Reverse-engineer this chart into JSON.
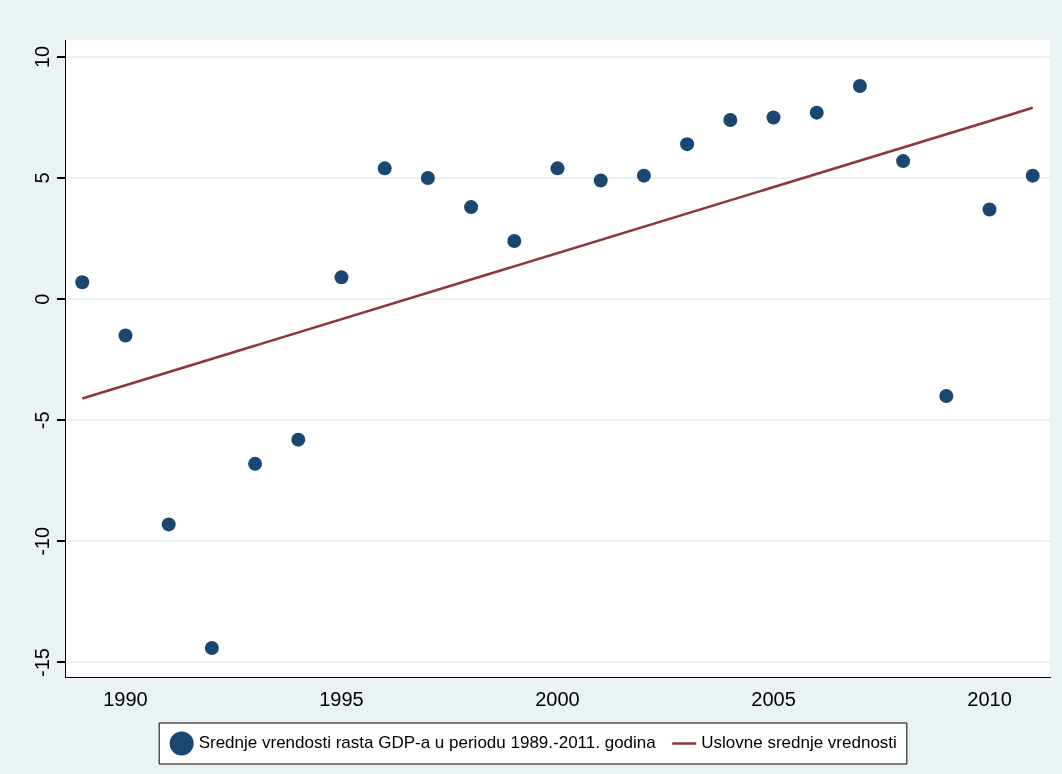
{
  "chart_data": {
    "type": "scatter",
    "x": [
      1989,
      1990,
      1991,
      1992,
      1993,
      1994,
      1995,
      1996,
      1997,
      1998,
      1999,
      2000,
      2001,
      2002,
      2003,
      2004,
      2005,
      2006,
      2007,
      2008,
      2009,
      2010,
      2011
    ],
    "series": [
      {
        "name": "Srednje vrendosti rasta GDP-a u periodu 1989.-2011. godina",
        "marker": "circle",
        "color": "#1a476f",
        "values": [
          0.7,
          -1.5,
          -9.3,
          -14.4,
          -6.8,
          -5.8,
          0.9,
          5.4,
          5.0,
          3.8,
          2.4,
          5.4,
          4.9,
          5.1,
          6.4,
          7.4,
          7.5,
          7.7,
          8.8,
          5.7,
          -4.0,
          3.7,
          5.1
        ]
      },
      {
        "name": "Uslovne srednje vrednosti",
        "type": "line",
        "marker": "none",
        "color": "#90353b",
        "x": [
          1989,
          2011
        ],
        "values": [
          -4.1,
          7.9
        ]
      }
    ],
    "xlim": [
      1988.6,
      2011.4
    ],
    "xticks": [
      1990,
      1995,
      2000,
      2005,
      2010
    ],
    "ylim": [
      -15.6,
      10.7
    ],
    "yticks": [
      -15,
      -10,
      -5,
      0,
      5,
      10
    ],
    "grid": "y",
    "legend": "bottom"
  }
}
